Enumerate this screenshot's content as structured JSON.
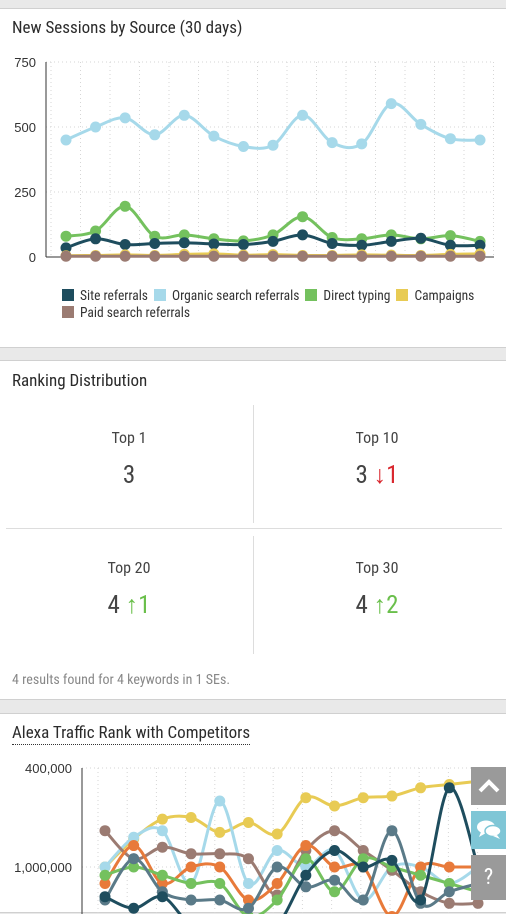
{
  "sessions": {
    "title": "New Sessions by Source (30 days)",
    "chart_data": {
      "type": "line",
      "title": "New Sessions by Source (30 days)",
      "ylim": [
        0,
        750
      ],
      "yticks": [
        "0",
        "250",
        "500",
        "750"
      ],
      "grid": true,
      "legend_position": "bottom",
      "x": [
        1,
        2,
        3,
        4,
        5,
        6,
        7,
        8,
        9,
        10,
        11,
        12,
        13,
        14,
        15
      ],
      "series": [
        {
          "name": "Site referrals",
          "color": "#1e4d5e",
          "values": [
            35,
            70,
            48,
            52,
            55,
            50,
            48,
            60,
            85,
            52,
            45,
            60,
            72,
            45,
            45
          ]
        },
        {
          "name": "Organic search referrals",
          "color": "#a6d9ea",
          "values": [
            450,
            500,
            535,
            470,
            545,
            465,
            425,
            430,
            545,
            440,
            435,
            590,
            510,
            455,
            450
          ]
        },
        {
          "name": "Direct typing",
          "color": "#74c15e",
          "values": [
            80,
            100,
            195,
            80,
            85,
            70,
            62,
            85,
            155,
            75,
            70,
            85,
            70,
            82,
            60
          ]
        },
        {
          "name": "Campaigns",
          "color": "#e8cb54",
          "values": [
            5,
            6,
            8,
            6,
            10,
            12,
            7,
            9,
            6,
            6,
            8,
            7,
            6,
            10,
            12
          ]
        },
        {
          "name": "Paid search referrals",
          "color": "#9b7b72",
          "values": [
            3,
            3,
            3,
            3,
            3,
            3,
            3,
            3,
            3,
            3,
            3,
            3,
            3,
            3,
            3
          ]
        }
      ]
    }
  },
  "ranking": {
    "title": "Ranking Distribution",
    "cells": [
      {
        "label": "Top 1",
        "value": "3",
        "arrow": "",
        "delta": ""
      },
      {
        "label": "Top 10",
        "value": "3",
        "arrow": "↓",
        "delta": "1"
      },
      {
        "label": "Top 20",
        "value": "4",
        "arrow": "↑",
        "delta": "1"
      },
      {
        "label": "Top 30",
        "value": "4",
        "arrow": "↑",
        "delta": "2"
      }
    ],
    "summary": "4 results found for 4 keywords in 1 SEs."
  },
  "alexa": {
    "title": "Alexa Traffic Rank with Competitors",
    "chart_data": {
      "type": "line",
      "title": "Alexa Traffic Rank with Competitors",
      "yticks": [
        "400,000",
        "1,000,000"
      ],
      "ylim": [
        400000,
        1400000
      ],
      "grid": true,
      "x": [
        1,
        2,
        3,
        4,
        5,
        6,
        7,
        8,
        9,
        10,
        11,
        12,
        13,
        14
      ],
      "series": [
        {
          "color": "#e8cb54",
          "values": [
            1000000,
            830000,
            710000,
            700000,
            790000,
            730000,
            800000,
            580000,
            630000,
            580000,
            570000,
            520000,
            500000,
            480000
          ]
        },
        {
          "color": "#a6d9ea",
          "values": [
            1000000,
            820000,
            780000,
            1100000,
            600000,
            1100000,
            900000,
            1000000,
            900000,
            1200000,
            1000000,
            1000000,
            1100000,
            1000000
          ]
        },
        {
          "color": "#9b7b72",
          "values": [
            780000,
            950000,
            880000,
            920000,
            920000,
            950000,
            1170000,
            900000,
            780000,
            900000,
            1020000,
            1150000,
            1220000,
            1220000
          ]
        },
        {
          "color": "#e87a3a",
          "values": [
            1100000,
            870000,
            1100000,
            1000000,
            1000000,
            1200000,
            1100000,
            870000,
            1000000,
            1000000,
            1300000,
            1000000,
            1000000,
            1000000
          ]
        },
        {
          "color": "#74c15e",
          "values": [
            1050000,
            1000000,
            1050000,
            1100000,
            1100000,
            1300000,
            1200000,
            950000,
            1150000,
            950000,
            1000000,
            1050000,
            1100000,
            1150000
          ]
        },
        {
          "color": "#5a7a88",
          "values": [
            1200000,
            950000,
            1150000,
            1200000,
            1200000,
            1250000,
            1000000,
            1120000,
            1080000,
            1200000,
            780000,
            1220000,
            1150000,
            1100000
          ]
        },
        {
          "color": "#1e4d5e",
          "values": [
            1180000,
            1250000,
            1180000,
            1350000,
            1350000,
            1350000,
            1350000,
            1050000,
            900000,
            1000000,
            960000,
            1200000,
            520000,
            1000000
          ]
        }
      ]
    }
  },
  "fab": {
    "top_icon": "chevron-up-icon",
    "chat_icon": "chat-bubbles-icon",
    "help_label": "?"
  }
}
